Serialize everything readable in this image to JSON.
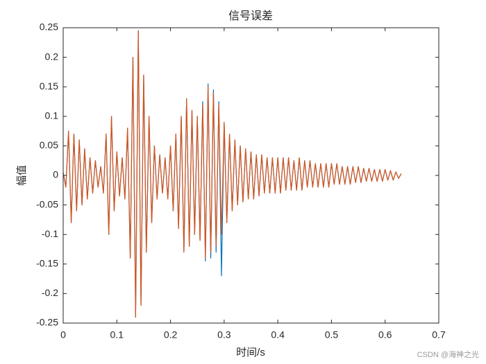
{
  "chart_data": {
    "type": "line",
    "title": "信号误差",
    "xlabel": "时间/s",
    "ylabel": "幅值",
    "watermark": "CSDN @海神之光",
    "x": [
      0,
      0.005,
      0.01,
      0.015,
      0.02,
      0.025,
      0.03,
      0.035,
      0.04,
      0.045,
      0.05,
      0.055,
      0.06,
      0.065,
      0.07,
      0.075,
      0.08,
      0.085,
      0.09,
      0.095,
      0.1,
      0.105,
      0.11,
      0.115,
      0.12,
      0.125,
      0.13,
      0.135,
      0.14,
      0.145,
      0.15,
      0.155,
      0.16,
      0.165,
      0.17,
      0.175,
      0.18,
      0.185,
      0.19,
      0.195,
      0.2,
      0.205,
      0.21,
      0.215,
      0.22,
      0.225,
      0.23,
      0.235,
      0.24,
      0.245,
      0.25,
      0.255,
      0.26,
      0.265,
      0.27,
      0.275,
      0.28,
      0.285,
      0.29,
      0.295,
      0.3,
      0.305,
      0.31,
      0.315,
      0.32,
      0.325,
      0.33,
      0.335,
      0.34,
      0.345,
      0.35,
      0.355,
      0.36,
      0.365,
      0.37,
      0.375,
      0.38,
      0.385,
      0.39,
      0.395,
      0.4,
      0.405,
      0.41,
      0.415,
      0.42,
      0.425,
      0.43,
      0.435,
      0.44,
      0.445,
      0.45,
      0.455,
      0.46,
      0.465,
      0.47,
      0.475,
      0.48,
      0.485,
      0.49,
      0.495,
      0.5,
      0.505,
      0.51,
      0.515,
      0.52,
      0.525,
      0.53,
      0.535,
      0.54,
      0.545,
      0.55,
      0.555,
      0.56,
      0.565,
      0.57,
      0.575,
      0.58,
      0.585,
      0.59,
      0.595,
      0.6,
      0.605,
      0.61,
      0.615,
      0.62,
      0.625,
      0.63
    ],
    "series": [
      {
        "color": "#0072bd",
        "values": [
          0.005,
          -0.02,
          0.075,
          -0.08,
          0.07,
          -0.06,
          0.06,
          -0.05,
          0.045,
          -0.04,
          0.03,
          -0.03,
          0.025,
          -0.02,
          0.015,
          -0.03,
          0.07,
          -0.1,
          0.1,
          -0.06,
          0.04,
          -0.035,
          0.03,
          -0.04,
          0.08,
          -0.14,
          0.2,
          -0.24,
          0.245,
          -0.22,
          0.17,
          -0.13,
          0.1,
          -0.08,
          0.05,
          -0.04,
          0.035,
          -0.03,
          0.03,
          -0.04,
          0.05,
          -0.06,
          0.07,
          -0.09,
          0.1,
          -0.13,
          0.13,
          -0.12,
          0.11,
          -0.1,
          0.1,
          -0.11,
          0.125,
          -0.145,
          0.155,
          -0.14,
          0.145,
          -0.13,
          0.125,
          -0.17,
          0.09,
          -0.08,
          0.07,
          -0.06,
          0.06,
          -0.05,
          0.05,
          -0.045,
          0.045,
          -0.04,
          0.04,
          -0.04,
          0.035,
          -0.035,
          0.035,
          -0.03,
          0.03,
          -0.03,
          0.03,
          -0.03,
          0.03,
          -0.03,
          0.03,
          -0.025,
          0.03,
          -0.025,
          0.025,
          -0.025,
          0.03,
          -0.025,
          0.025,
          -0.02,
          0.025,
          -0.02,
          0.02,
          -0.02,
          0.02,
          -0.02,
          0.02,
          -0.02,
          0.02,
          -0.015,
          0.02,
          -0.015,
          0.015,
          -0.015,
          0.015,
          -0.015,
          0.015,
          -0.012,
          0.015,
          -0.012,
          0.012,
          -0.01,
          0.012,
          -0.01,
          0.01,
          -0.01,
          0.01,
          -0.01,
          0.01,
          -0.008,
          0.008,
          -0.008,
          0.006,
          -0.005,
          0.003
        ]
      },
      {
        "color": "#d95319",
        "values": [
          0.005,
          -0.02,
          0.075,
          -0.08,
          0.07,
          -0.06,
          0.06,
          -0.05,
          0.045,
          -0.04,
          0.03,
          -0.03,
          0.025,
          -0.02,
          0.015,
          -0.03,
          0.07,
          -0.1,
          0.1,
          -0.06,
          0.04,
          -0.035,
          0.03,
          -0.04,
          0.08,
          -0.14,
          0.2,
          -0.24,
          0.245,
          -0.22,
          0.17,
          -0.13,
          0.1,
          -0.08,
          0.05,
          -0.04,
          0.035,
          -0.03,
          0.03,
          -0.04,
          0.05,
          -0.06,
          0.07,
          -0.09,
          0.1,
          -0.13,
          0.13,
          -0.12,
          0.11,
          -0.1,
          0.1,
          -0.11,
          0.12,
          -0.14,
          0.15,
          -0.13,
          0.14,
          -0.12,
          0.12,
          -0.1,
          0.09,
          -0.08,
          0.07,
          -0.06,
          0.06,
          -0.05,
          0.05,
          -0.045,
          0.045,
          -0.04,
          0.04,
          -0.04,
          0.035,
          -0.035,
          0.035,
          -0.03,
          0.03,
          -0.03,
          0.03,
          -0.03,
          0.03,
          -0.03,
          0.03,
          -0.025,
          0.03,
          -0.025,
          0.025,
          -0.025,
          0.03,
          -0.025,
          0.025,
          -0.02,
          0.025,
          -0.02,
          0.02,
          -0.02,
          0.02,
          -0.02,
          0.02,
          -0.02,
          0.02,
          -0.015,
          0.02,
          -0.015,
          0.015,
          -0.015,
          0.015,
          -0.015,
          0.015,
          -0.012,
          0.015,
          -0.012,
          0.012,
          -0.01,
          0.012,
          -0.01,
          0.01,
          -0.01,
          0.01,
          -0.01,
          0.01,
          -0.008,
          0.008,
          -0.008,
          0.006,
          -0.005,
          0.003
        ]
      }
    ],
    "xlim": [
      0,
      0.7
    ],
    "xticks": [
      0,
      0.1,
      0.2,
      0.3,
      0.4,
      0.5,
      0.6,
      0.7
    ],
    "ylim": [
      -0.25,
      0.25
    ],
    "yticks": [
      -0.25,
      -0.2,
      -0.15,
      -0.1,
      -0.05,
      0,
      0.05,
      0.1,
      0.15,
      0.2,
      0.25
    ]
  }
}
